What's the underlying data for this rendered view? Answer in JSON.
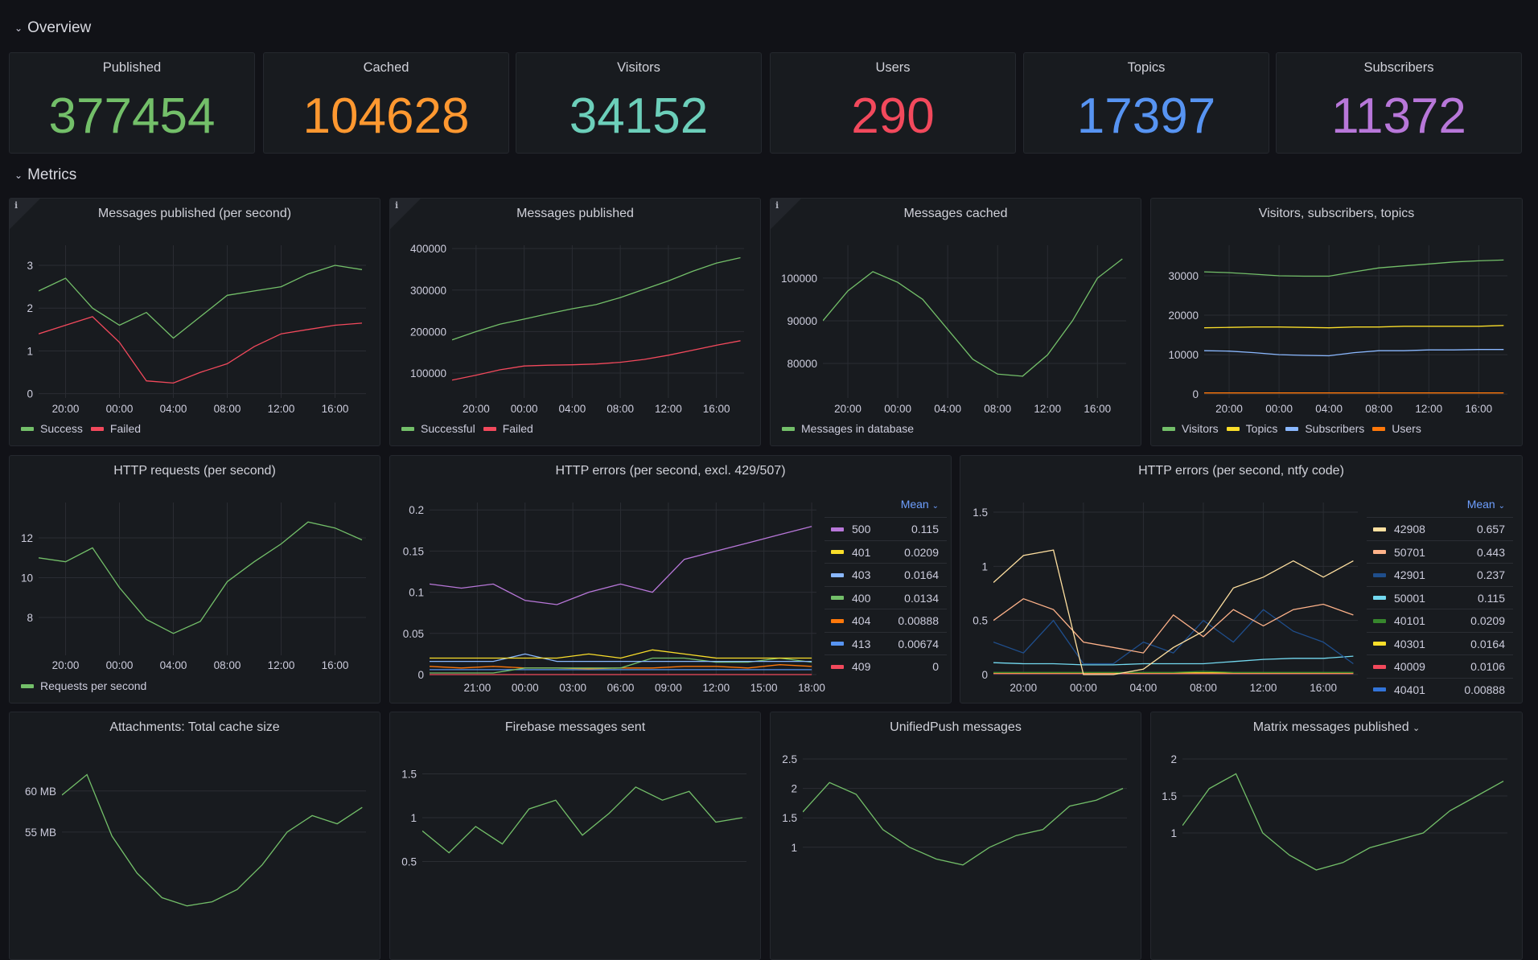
{
  "rows": {
    "overview": "Overview",
    "metrics": "Metrics"
  },
  "stats": [
    {
      "title": "Published",
      "value": "377454",
      "color": "#73BF69"
    },
    {
      "title": "Cached",
      "value": "104628",
      "color": "#FF9830"
    },
    {
      "title": "Visitors",
      "value": "34152",
      "color": "#6CCFBA"
    },
    {
      "title": "Users",
      "value": "290",
      "color": "#F2495C"
    },
    {
      "title": "Topics",
      "value": "17397",
      "color": "#5794F2"
    },
    {
      "title": "Subscribers",
      "value": "11372",
      "color": "#B877D9"
    }
  ],
  "chart_data": [
    {
      "type": "line",
      "title": "Messages published (per second)",
      "info": true,
      "x": [
        "18:00",
        "20:00",
        "22:00",
        "00:00",
        "02:00",
        "04:00",
        "06:00",
        "08:00",
        "10:00",
        "12:00",
        "14:00",
        "16:00",
        "18:00"
      ],
      "xticks": [
        "20:00",
        "00:00",
        "04:00",
        "08:00",
        "12:00",
        "16:00"
      ],
      "yticks": [
        "0",
        "1",
        "2",
        "3"
      ],
      "ylim": [
        -0.1,
        3.47
      ],
      "legend": "bottom",
      "series": [
        {
          "name": "Success",
          "color": "#73BF69",
          "values": [
            2.4,
            2.7,
            2.0,
            1.6,
            1.9,
            1.3,
            1.8,
            2.3,
            2.4,
            2.5,
            2.8,
            3.0,
            2.9
          ]
        },
        {
          "name": "Failed",
          "color": "#F2495C",
          "values": [
            1.4,
            1.6,
            1.8,
            1.2,
            0.3,
            0.25,
            0.5,
            0.7,
            1.1,
            1.4,
            1.5,
            1.6,
            1.65
          ]
        }
      ]
    },
    {
      "type": "line",
      "title": "Messages published",
      "info": true,
      "x": [
        "18:00",
        "20:00",
        "22:00",
        "00:00",
        "02:00",
        "04:00",
        "06:00",
        "08:00",
        "10:00",
        "12:00",
        "14:00",
        "16:00",
        "18:00"
      ],
      "xticks": [
        "20:00",
        "00:00",
        "04:00",
        "08:00",
        "12:00",
        "16:00"
      ],
      "yticks": [
        "100000",
        "200000",
        "300000",
        "400000"
      ],
      "ylim": [
        40000,
        408000
      ],
      "legend": "bottom",
      "series": [
        {
          "name": "Successful",
          "color": "#73BF69",
          "values": [
            180000,
            200000,
            218000,
            230000,
            243000,
            255000,
            265000,
            282000,
            302000,
            322000,
            345000,
            365000,
            378000
          ]
        },
        {
          "name": "Failed",
          "color": "#F2495C",
          "values": [
            83000,
            95000,
            108000,
            117000,
            119000,
            120000,
            122000,
            126000,
            133000,
            143000,
            155000,
            167000,
            178000
          ]
        }
      ]
    },
    {
      "type": "line",
      "title": "Messages cached",
      "info": true,
      "x": [
        "18:00",
        "20:00",
        "22:00",
        "00:00",
        "02:00",
        "04:00",
        "06:00",
        "08:00",
        "10:00",
        "12:00",
        "14:00",
        "16:00",
        "18:00"
      ],
      "xticks": [
        "20:00",
        "00:00",
        "04:00",
        "08:00",
        "12:00",
        "16:00"
      ],
      "yticks": [
        "80000",
        "90000",
        "100000"
      ],
      "ylim": [
        71900,
        107700
      ],
      "legend": "bottom",
      "series": [
        {
          "name": "Messages in database",
          "color": "#73BF69",
          "values": [
            90000,
            97000,
            101500,
            99000,
            95000,
            88000,
            81000,
            77500,
            77000,
            82000,
            90000,
            100000,
            104500
          ]
        }
      ]
    },
    {
      "type": "line",
      "title": "Visitors, subscribers, topics",
      "info": false,
      "x": [
        "18:00",
        "20:00",
        "22:00",
        "00:00",
        "02:00",
        "04:00",
        "06:00",
        "08:00",
        "10:00",
        "12:00",
        "14:00",
        "16:00",
        "18:00"
      ],
      "xticks": [
        "20:00",
        "00:00",
        "04:00",
        "08:00",
        "12:00",
        "16:00"
      ],
      "yticks": [
        "0",
        "10000",
        "20000",
        "30000"
      ],
      "ylim": [
        -1000,
        37750
      ],
      "legend": "bottom",
      "series": [
        {
          "name": "Visitors",
          "color": "#73BF69",
          "values": [
            31000,
            30800,
            30400,
            30000,
            29900,
            29900,
            31000,
            32000,
            32500,
            33000,
            33500,
            33800,
            34000
          ]
        },
        {
          "name": "Topics",
          "color": "#FADE2A",
          "values": [
            16800,
            16900,
            17000,
            17000,
            16900,
            16800,
            17000,
            17000,
            17200,
            17200,
            17200,
            17200,
            17400
          ]
        },
        {
          "name": "Subscribers",
          "color": "#8AB8FF",
          "values": [
            11000,
            10900,
            10500,
            10000,
            9800,
            9700,
            10500,
            11000,
            11000,
            11200,
            11200,
            11300,
            11300
          ]
        },
        {
          "name": "Users",
          "color": "#FF780A",
          "values": [
            290,
            290,
            290,
            290,
            290,
            290,
            290,
            290,
            290,
            290,
            290,
            290,
            290
          ]
        }
      ]
    },
    {
      "type": "line",
      "title": "HTTP requests (per second)",
      "info": false,
      "x": [
        "18:00",
        "20:00",
        "22:00",
        "00:00",
        "02:00",
        "04:00",
        "06:00",
        "08:00",
        "10:00",
        "12:00",
        "14:00",
        "16:00",
        "18:00"
      ],
      "xticks": [
        "20:00",
        "00:00",
        "04:00",
        "08:00",
        "12:00",
        "16:00"
      ],
      "yticks": [
        "8",
        "10",
        "12"
      ],
      "ylim": [
        6.1,
        13.78
      ],
      "legend": "bottom",
      "series": [
        {
          "name": "Requests per second",
          "color": "#73BF69",
          "values": [
            11,
            10.8,
            11.5,
            9.5,
            7.9,
            7.2,
            7.8,
            9.8,
            10.8,
            11.7,
            12.8,
            12.5,
            11.9
          ]
        }
      ]
    },
    {
      "type": "line",
      "title": "HTTP errors (per second, excl. 429/507)",
      "info": false,
      "x": [
        "18:00",
        "20:00",
        "22:00",
        "00:00",
        "02:00",
        "04:00",
        "06:00",
        "08:00",
        "10:00",
        "12:00",
        "14:00",
        "16:00",
        "18:00"
      ],
      "xticks": [
        "21:00",
        "00:00",
        "03:00",
        "06:00",
        "09:00",
        "12:00",
        "15:00",
        "18:00"
      ],
      "yticks": [
        "0",
        "0.05",
        "0.1",
        "0.15",
        "0.2"
      ],
      "ylim": [
        0,
        0.209
      ],
      "legend": "right",
      "legend_stat": "Mean",
      "series": [
        {
          "name": "500",
          "mean": "0.115",
          "color": "#B877D9",
          "values": [
            0.11,
            0.105,
            0.11,
            0.09,
            0.085,
            0.1,
            0.11,
            0.1,
            0.14,
            0.15,
            0.16,
            0.17,
            0.18
          ]
        },
        {
          "name": "401",
          "mean": "0.0209",
          "color": "#FADE2A",
          "values": [
            0.02,
            0.02,
            0.02,
            0.02,
            0.02,
            0.025,
            0.02,
            0.03,
            0.025,
            0.02,
            0.02,
            0.02,
            0.02
          ]
        },
        {
          "name": "403",
          "mean": "0.0164",
          "color": "#8AB8FF",
          "values": [
            0.016,
            0.016,
            0.016,
            0.025,
            0.016,
            0.016,
            0.016,
            0.016,
            0.016,
            0.016,
            0.016,
            0.016,
            0.016
          ]
        },
        {
          "name": "400",
          "mean": "0.0134",
          "color": "#73BF69",
          "values": [
            0.002,
            0.002,
            0.002,
            0.008,
            0.008,
            0.008,
            0.008,
            0.02,
            0.02,
            0.015,
            0.015,
            0.02,
            0.015
          ]
        },
        {
          "name": "404",
          "mean": "0.00888",
          "color": "#FF780A",
          "values": [
            0.01,
            0.008,
            0.01,
            0.008,
            0.008,
            0.007,
            0.008,
            0.008,
            0.01,
            0.01,
            0.008,
            0.012,
            0.01
          ]
        },
        {
          "name": "413",
          "mean": "0.00674",
          "color": "#5794F2",
          "values": [
            0.006,
            0.006,
            0.006,
            0.006,
            0.006,
            0.006,
            0.006,
            0.006,
            0.006,
            0.006,
            0.006,
            0.006,
            0.006
          ]
        },
        {
          "name": "409",
          "mean": "0",
          "color": "#F2495C",
          "values": [
            0,
            0,
            0,
            0,
            0,
            0,
            0,
            0,
            0,
            0,
            0,
            0,
            0
          ]
        }
      ]
    },
    {
      "type": "line",
      "title": "HTTP errors (per second, ntfy code)",
      "info": false,
      "x": [
        "18:00",
        "20:00",
        "22:00",
        "00:00",
        "02:00",
        "04:00",
        "06:00",
        "08:00",
        "10:00",
        "12:00",
        "14:00",
        "16:00",
        "18:00"
      ],
      "xticks": [
        "20:00",
        "00:00",
        "04:00",
        "08:00",
        "12:00",
        "16:00"
      ],
      "yticks": [
        "0",
        "0.5",
        "1",
        "1.5"
      ],
      "ylim": [
        0,
        1.589
      ],
      "legend": "right",
      "legend_stat": "Mean",
      "series": [
        {
          "name": "42908",
          "mean": "0.657",
          "color": "#FFE0A0",
          "values": [
            0.85,
            1.1,
            1.15,
            0,
            0,
            0.05,
            0.25,
            0.4,
            0.8,
            0.9,
            1.05,
            0.9,
            1.05
          ]
        },
        {
          "name": "50701",
          "mean": "0.443",
          "color": "#FFB38A",
          "values": [
            0.5,
            0.7,
            0.6,
            0.3,
            0.25,
            0.2,
            0.55,
            0.35,
            0.6,
            0.45,
            0.6,
            0.65,
            0.55
          ]
        },
        {
          "name": "42901",
          "mean": "0.237",
          "color": "#1F4E8C",
          "values": [
            0.3,
            0.2,
            0.5,
            0.1,
            0.1,
            0.3,
            0.2,
            0.5,
            0.3,
            0.6,
            0.4,
            0.3,
            0.1
          ]
        },
        {
          "name": "50001",
          "mean": "0.115",
          "color": "#73D9F0",
          "values": [
            0.11,
            0.1,
            0.1,
            0.09,
            0.09,
            0.1,
            0.1,
            0.1,
            0.12,
            0.14,
            0.15,
            0.15,
            0.17
          ]
        },
        {
          "name": "40101",
          "mean": "0.0209",
          "color": "#37872D",
          "values": [
            0.02,
            0.02,
            0.02,
            0.02,
            0.02,
            0.02,
            0.02,
            0.03,
            0.02,
            0.02,
            0.02,
            0.02,
            0.02
          ]
        },
        {
          "name": "40301",
          "mean": "0.0164",
          "color": "#FADE2A",
          "values": [
            0.016,
            0.016,
            0.016,
            0.016,
            0.016,
            0.016,
            0.016,
            0.016,
            0.016,
            0.016,
            0.016,
            0.016,
            0.016
          ]
        },
        {
          "name": "40009",
          "mean": "0.0106",
          "color": "#F2495C",
          "values": [
            0.01,
            0.01,
            0.01,
            0.01,
            0.01,
            0.01,
            0.01,
            0.01,
            0.01,
            0.01,
            0.01,
            0.01,
            0.01
          ]
        },
        {
          "name": "40401",
          "mean": "0.00888",
          "color": "#3274D9",
          "values": [
            0.009,
            0.009,
            0.009,
            0.009,
            0.009,
            0.009,
            0.009,
            0.009,
            0.009,
            0.009,
            0.009,
            0.009,
            0.009
          ]
        }
      ]
    },
    {
      "type": "line",
      "title": "Attachments: Total cache size",
      "info": false,
      "x": [
        "18:00",
        "20:00",
        "22:00",
        "00:00",
        "02:00",
        "04:00",
        "06:00",
        "08:00",
        "10:00",
        "12:00",
        "14:00",
        "16:00",
        "18:00"
      ],
      "xticks": [],
      "yticks": [
        "55 MB",
        "60 MB"
      ],
      "ytick_values": [
        55,
        60
      ],
      "ylim": [
        40,
        63.7
      ],
      "legend": "none",
      "series": [
        {
          "color": "#73BF69",
          "values": [
            59.5,
            62,
            54.5,
            50,
            47,
            46,
            46.5,
            48,
            51,
            55,
            57,
            56,
            58
          ]
        }
      ]
    },
    {
      "type": "line",
      "title": "Firebase messages sent",
      "info": false,
      "x": [
        "18:00",
        "20:00",
        "22:00",
        "00:00",
        "02:00",
        "04:00",
        "06:00",
        "08:00",
        "10:00",
        "12:00",
        "14:00",
        "16:00",
        "18:00"
      ],
      "xticks": [],
      "yticks": [
        "0.5",
        "1",
        "1.5"
      ],
      "ylim": [
        0,
        1.67
      ],
      "legend": "none",
      "series": [
        {
          "color": "#73BF69",
          "values": [
            0.85,
            0.6,
            0.9,
            0.7,
            1.1,
            1.2,
            0.8,
            1.05,
            1.35,
            1.2,
            1.3,
            0.95,
            1.0
          ]
        }
      ]
    },
    {
      "type": "line",
      "title": "UnifiedPush messages",
      "info": false,
      "x": [
        "18:00",
        "20:00",
        "22:00",
        "00:00",
        "02:00",
        "04:00",
        "06:00",
        "08:00",
        "10:00",
        "12:00",
        "14:00",
        "16:00",
        "18:00"
      ],
      "xticks": [],
      "yticks": [
        "1",
        "1.5",
        "2",
        "2.5"
      ],
      "ylim": [
        0,
        2.5
      ],
      "legend": "none",
      "series": [
        {
          "color": "#73BF69",
          "values": [
            1.6,
            2.1,
            1.9,
            1.3,
            1.0,
            0.8,
            0.7,
            1.0,
            1.2,
            1.3,
            1.7,
            1.8,
            2.0
          ]
        }
      ]
    },
    {
      "type": "line",
      "title": "Matrix messages published",
      "info": false,
      "menu": true,
      "x": [
        "18:00",
        "20:00",
        "22:00",
        "00:00",
        "02:00",
        "04:00",
        "06:00",
        "08:00",
        "10:00",
        "12:00",
        "14:00",
        "16:00",
        "18:00"
      ],
      "xticks": [],
      "yticks": [
        "1",
        "1.5",
        "2"
      ],
      "ylim": [
        0,
        2
      ],
      "legend": "none",
      "series": [
        {
          "color": "#73BF69",
          "values": [
            1.1,
            1.6,
            1.8,
            1.0,
            0.7,
            0.5,
            0.6,
            0.8,
            0.9,
            1.0,
            1.3,
            1.5,
            1.7
          ]
        }
      ]
    }
  ]
}
